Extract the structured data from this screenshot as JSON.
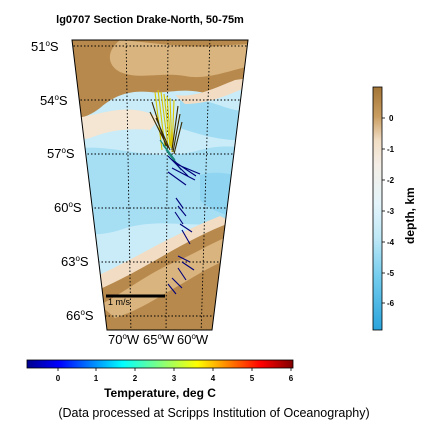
{
  "title": "lg0707 Section Drake-North, 50-75m",
  "map": {
    "lat_labels": [
      {
        "deg": "51",
        "suffix": "S"
      },
      {
        "deg": "54",
        "suffix": "S"
      },
      {
        "deg": "57",
        "suffix": "S"
      },
      {
        "deg": "60",
        "suffix": "S"
      },
      {
        "deg": "63",
        "suffix": "S"
      },
      {
        "deg": "66",
        "suffix": "S"
      }
    ],
    "lon_labels": [
      {
        "deg": "70",
        "suffix": "W"
      },
      {
        "deg": "65",
        "suffix": "W"
      },
      {
        "deg": "60",
        "suffix": "W"
      }
    ],
    "scale_label": "1 m/s",
    "colors": {
      "land": "#b8894d",
      "shelf": "#d9b47e",
      "shallow": "#f2ddc4",
      "deep_light": "#c9ecf8",
      "deep_mid": "#9fdcf3",
      "deep_dark": "#66c7ec"
    }
  },
  "depth_colorbar": {
    "label": "depth, km",
    "ticks": [
      "0",
      "-1",
      "-2",
      "-3",
      "-4",
      "-5",
      "-6"
    ]
  },
  "temperature_colorbar": {
    "label": "Temperature, deg C",
    "ticks": [
      "0",
      "1",
      "2",
      "3",
      "4",
      "5",
      "6"
    ]
  },
  "footer": "(Data processed at Scripps Institution of Oceanography)"
}
